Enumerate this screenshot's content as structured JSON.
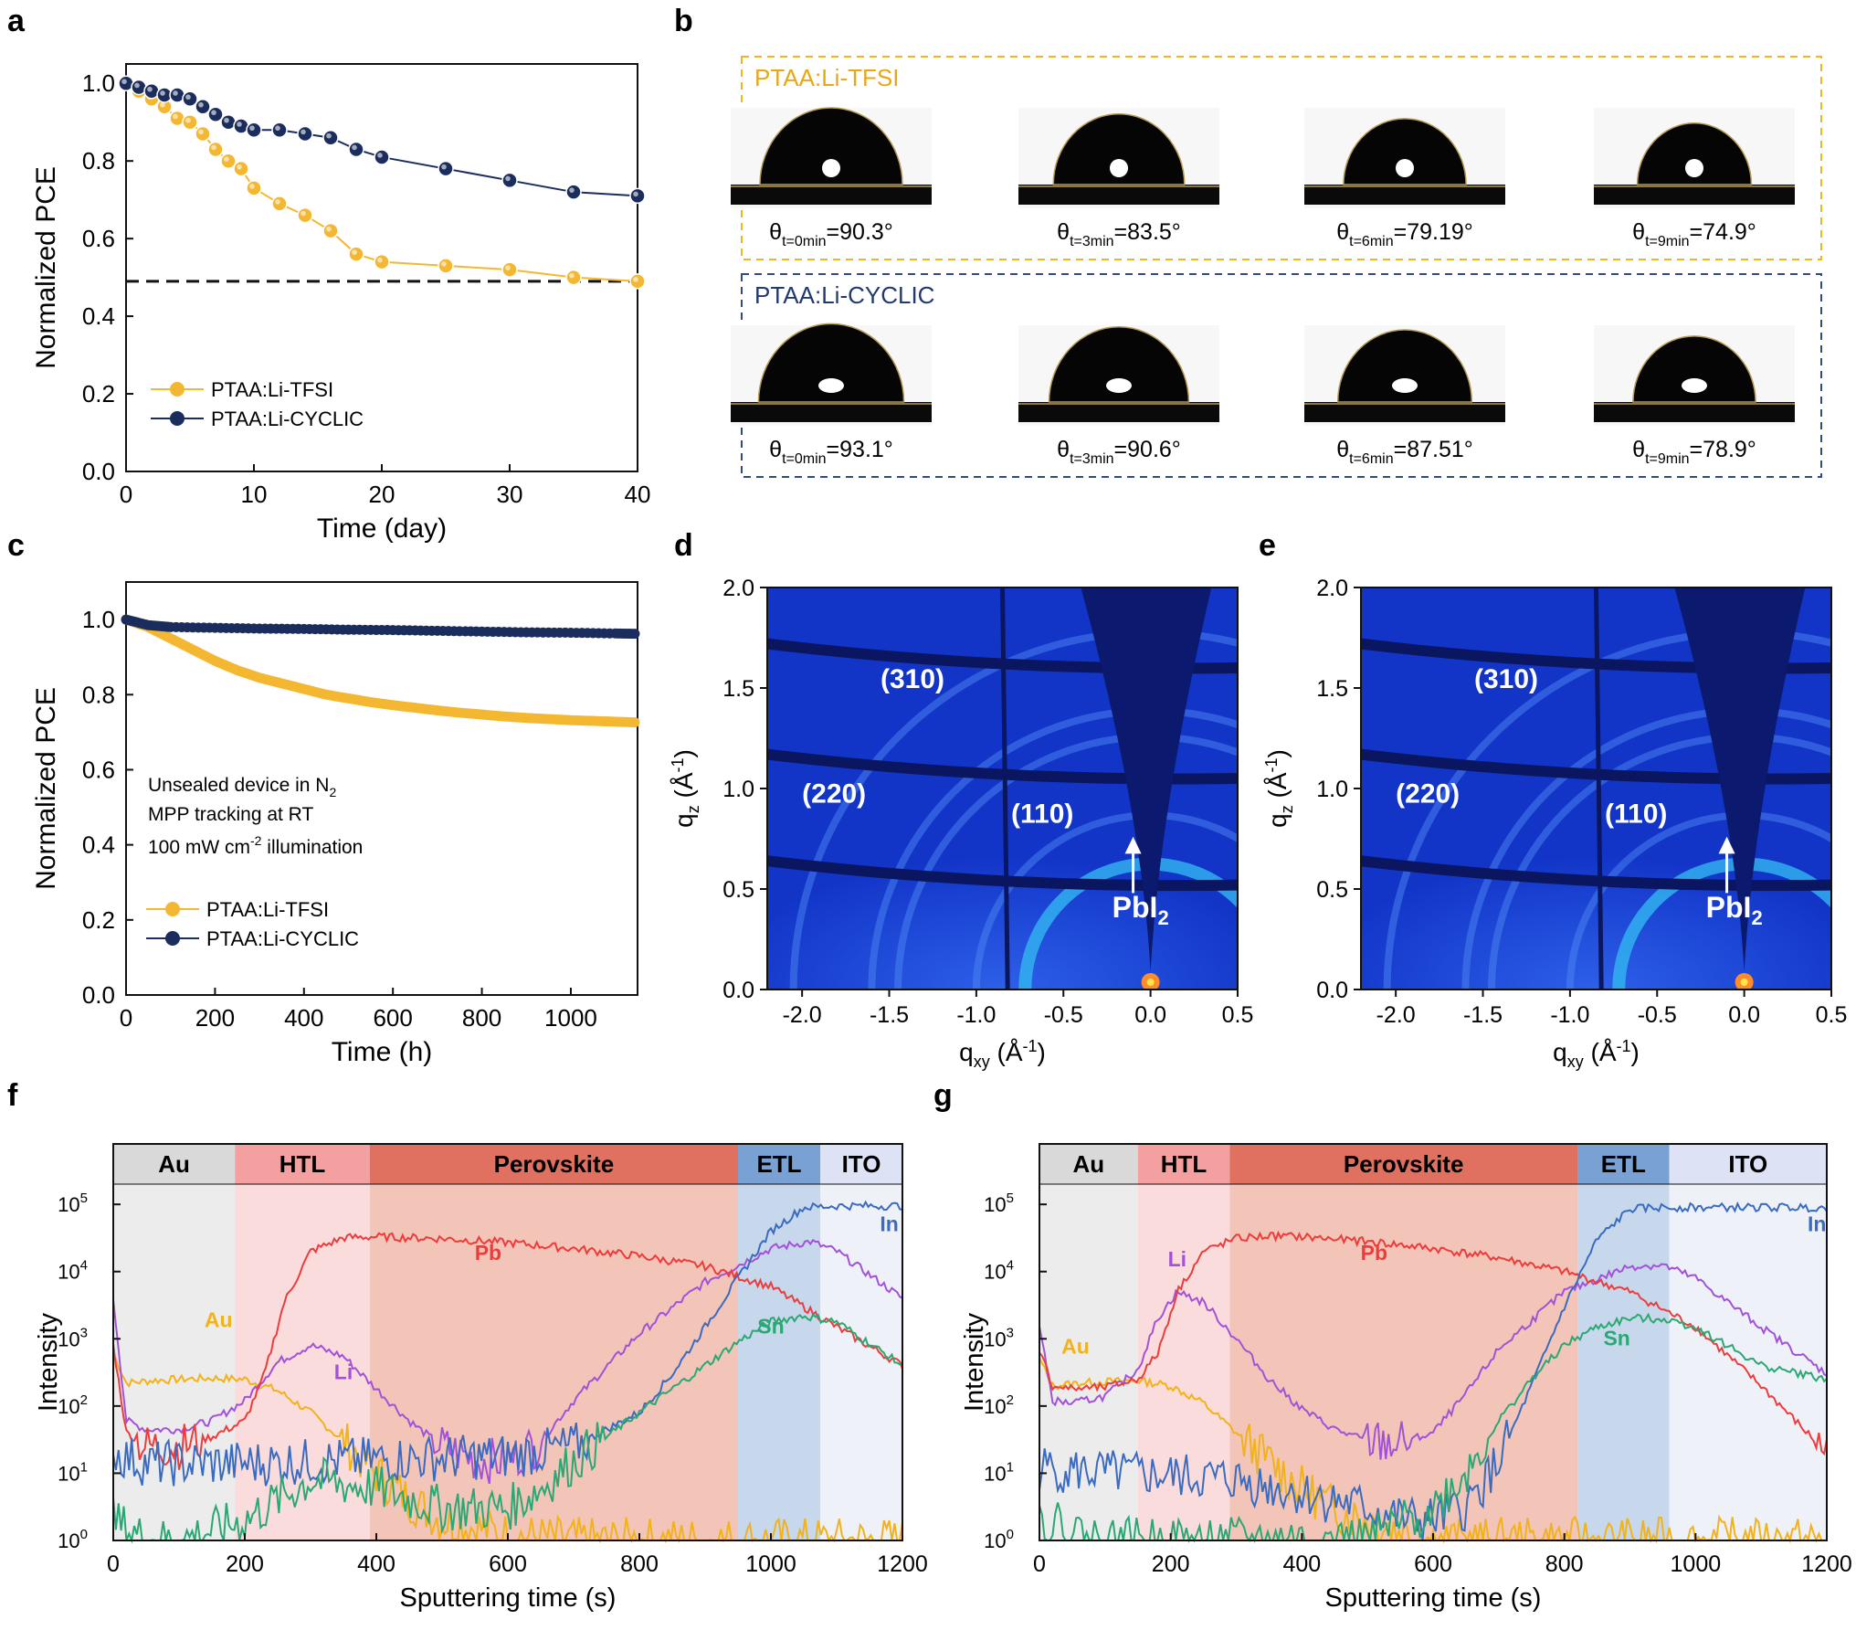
{
  "panel_labels": [
    "a",
    "b",
    "c",
    "d",
    "e",
    "f",
    "g"
  ],
  "colors": {
    "tfsi": "#f4b731",
    "cyclic": "#1b2d5c",
    "dashed": "#111111",
    "gi_bg": "#1235c8",
    "gi_dark": "#0a1660",
    "gi_ring": "#33b6f0",
    "Au": "#f2b21a",
    "Li": "#a252d8",
    "Pb": "#ee3b3b",
    "In": "#3a6bc0",
    "Sn": "#2aa873",
    "band_Au": "#d9d9d9",
    "band_HTL": "#f5a0a0",
    "band_Perovskite": "#e0705f",
    "band_ETL": "#7aa1d4",
    "band_ITO": "#dde3f4"
  },
  "chart_data": [
    {
      "panel": "a",
      "type": "line",
      "xlabel": "Time (day)",
      "ylabel": "Normalized PCE",
      "xlim": [
        0,
        40
      ],
      "ylim": [
        0,
        1.05
      ],
      "xticks": [
        "0",
        "10",
        "20",
        "30",
        "40"
      ],
      "yticks": [
        "0.0",
        "0.2",
        "0.4",
        "0.6",
        "0.8",
        "1.0"
      ],
      "reference_line_y": 0.49,
      "legend": "bottom-left",
      "series": [
        {
          "name": "PTAA:Li-TFSI",
          "x": [
            0,
            1,
            2,
            3,
            4,
            5,
            6,
            7,
            8,
            9,
            10,
            12,
            14,
            16,
            18,
            20,
            25,
            30,
            35,
            40
          ],
          "y": [
            1.0,
            0.98,
            0.96,
            0.94,
            0.91,
            0.9,
            0.87,
            0.83,
            0.8,
            0.78,
            0.73,
            0.69,
            0.66,
            0.62,
            0.56,
            0.54,
            0.53,
            0.52,
            0.5,
            0.49
          ]
        },
        {
          "name": "PTAA:Li-CYCLIC",
          "x": [
            0,
            1,
            2,
            3,
            4,
            5,
            6,
            7,
            8,
            9,
            10,
            12,
            14,
            16,
            18,
            20,
            25,
            30,
            35,
            40
          ],
          "y": [
            1.0,
            0.99,
            0.98,
            0.97,
            0.97,
            0.96,
            0.94,
            0.92,
            0.9,
            0.89,
            0.88,
            0.88,
            0.87,
            0.86,
            0.83,
            0.81,
            0.78,
            0.75,
            0.72,
            0.71
          ]
        }
      ]
    },
    {
      "panel": "c",
      "type": "line",
      "xlabel": "Time (h)",
      "ylabel": "Normalized PCE",
      "xlim": [
        0,
        1150
      ],
      "ylim": [
        0,
        1.1
      ],
      "xticks": [
        "0",
        "200",
        "400",
        "600",
        "800",
        "1000"
      ],
      "yticks": [
        "0.0",
        "0.2",
        "0.4",
        "0.6",
        "0.8",
        "1.0"
      ],
      "annotation": [
        "Unsealed device in N",
        "2",
        "MPP tracking at RT",
        "100 mW cm",
        "-2",
        " illumination"
      ],
      "legend": "bottom-left",
      "series": [
        {
          "name": "PTAA:Li-TFSI",
          "x": [
            0,
            50,
            100,
            150,
            200,
            250,
            300,
            350,
            400,
            450,
            500,
            550,
            600,
            650,
            700,
            750,
            800,
            850,
            900,
            950,
            1000,
            1050,
            1100,
            1150
          ],
          "y": [
            1.0,
            0.98,
            0.95,
            0.92,
            0.89,
            0.865,
            0.845,
            0.83,
            0.815,
            0.8,
            0.79,
            0.78,
            0.772,
            0.765,
            0.758,
            0.752,
            0.747,
            0.742,
            0.738,
            0.735,
            0.732,
            0.73,
            0.728,
            0.726
          ]
        },
        {
          "name": "PTAA:Li-CYCLIC",
          "x": [
            0,
            50,
            100,
            200,
            300,
            400,
            500,
            600,
            700,
            800,
            900,
            1000,
            1100,
            1150
          ],
          "y": [
            1.0,
            0.985,
            0.98,
            0.978,
            0.976,
            0.975,
            0.973,
            0.972,
            0.97,
            0.968,
            0.966,
            0.965,
            0.963,
            0.962
          ]
        }
      ]
    },
    {
      "panel": "d",
      "type": "heatmap",
      "xlabel_main": "q",
      "xlabel_sub": "xy",
      "xlabel_unit": " (Å",
      "xlabel_sup": "-1",
      "xlabel_end": ")",
      "ylabel_main": "q",
      "ylabel_sub": "z",
      "ylabel_unit": " (Å",
      "ylabel_sup": "-1",
      "ylabel_end": ")",
      "xlim": [
        -2.2,
        0.5
      ],
      "ylim": [
        0,
        2.0
      ],
      "xticks": [
        "-2.0",
        "-1.5",
        "-1.0",
        "-0.5",
        "0.0",
        "0.5"
      ],
      "yticks": [
        "0.0",
        "0.5",
        "1.0",
        "1.5",
        "2.0"
      ],
      "rings_q": [
        0.72,
        1.0,
        1.45,
        1.6,
        2.05
      ],
      "ring_labels": [
        "(310)",
        "(220)",
        "(110)"
      ],
      "arrow_label": "PbI",
      "arrow_label_sub": "2"
    },
    {
      "panel": "e",
      "type": "heatmap",
      "xlim": [
        -2.2,
        0.5
      ],
      "ylim": [
        0,
        2.0
      ],
      "xticks": [
        "-2.0",
        "-1.5",
        "-1.0",
        "-0.5",
        "0.0",
        "0.5"
      ],
      "yticks": [
        "0.0",
        "0.5",
        "1.0",
        "1.5",
        "2.0"
      ],
      "rings_q": [
        0.72,
        1.0,
        1.45,
        1.6,
        2.05
      ],
      "ring_labels": [
        "(310)",
        "(220)",
        "(110)"
      ],
      "arrow_label": "PbI",
      "arrow_label_sub": "2"
    },
    {
      "panel": "f",
      "type": "line",
      "xlabel": "Sputtering time (s)",
      "ylabel": "Intensity",
      "yscale": "log",
      "xlim": [
        0,
        1200
      ],
      "ylim": [
        1,
        200000
      ],
      "xticks": [
        "0",
        "200",
        "400",
        "600",
        "800",
        "1000",
        "1200"
      ],
      "yticks": [
        "10",
        "10",
        "10",
        "10",
        "10",
        "10"
      ],
      "ytick_exponents": [
        "0",
        "1",
        "2",
        "3",
        "4",
        "5"
      ],
      "layers": [
        {
          "name": "Au",
          "from": 0,
          "to": 185
        },
        {
          "name": "HTL",
          "from": 185,
          "to": 390
        },
        {
          "name": "Perovskite",
          "from": 390,
          "to": 950
        },
        {
          "name": "ETL",
          "from": 950,
          "to": 1075
        },
        {
          "name": "ITO",
          "from": 1075,
          "to": 1200
        }
      ],
      "series": [
        {
          "name": "Au",
          "x": [
            0,
            20,
            60,
            100,
            150,
            200,
            250,
            300,
            350,
            400,
            450,
            500,
            600,
            700,
            800,
            900,
            1000,
            1100,
            1200
          ],
          "y": [
            600,
            220,
            240,
            250,
            260,
            250,
            170,
            80,
            30,
            10,
            4,
            2,
            1.2,
            1,
            1,
            1,
            1,
            1,
            1
          ]
        },
        {
          "name": "Li",
          "x": [
            0,
            20,
            50,
            100,
            150,
            200,
            250,
            300,
            350,
            400,
            450,
            500,
            550,
            600,
            650,
            700,
            800,
            900,
            1000,
            1060,
            1100,
            1200
          ],
          "y": [
            4000,
            60,
            45,
            45,
            60,
            120,
            450,
            800,
            550,
            180,
            60,
            25,
            16,
            15,
            30,
            120,
            1200,
            7000,
            22000,
            28000,
            20000,
            4000
          ]
        },
        {
          "name": "Pb",
          "x": [
            0,
            20,
            50,
            100,
            150,
            200,
            230,
            260,
            300,
            350,
            400,
            500,
            600,
            700,
            800,
            900,
            1000,
            1100,
            1200
          ],
          "y": [
            800,
            40,
            25,
            25,
            35,
            60,
            300,
            3500,
            20000,
            32000,
            33000,
            31000,
            27000,
            22000,
            17000,
            12000,
            6000,
            1500,
            400
          ]
        },
        {
          "name": "In",
          "x": [
            0,
            50,
            100,
            200,
            300,
            400,
            500,
            600,
            700,
            800,
            850,
            900,
            950,
            1000,
            1050,
            1100,
            1200
          ],
          "y": [
            20,
            14,
            14,
            14,
            15,
            16,
            17,
            18,
            25,
            80,
            300,
            1500,
            8000,
            40000,
            90000,
            95000,
            95000
          ]
        },
        {
          "name": "Sn",
          "x": [
            0,
            50,
            100,
            200,
            250,
            300,
            400,
            500,
            600,
            650,
            700,
            800,
            900,
            950,
            1000,
            1050,
            1100,
            1200
          ],
          "y": [
            2,
            1,
            1,
            2,
            4,
            8,
            6,
            3,
            3,
            6,
            15,
            80,
            400,
            900,
            1800,
            2200,
            1800,
            400
          ]
        }
      ],
      "series_labels": [
        "Au",
        "Li",
        "Pb",
        "Sn",
        "In"
      ]
    },
    {
      "panel": "g",
      "type": "line",
      "xlabel": "Sputtering time (s)",
      "ylabel": "Intensity",
      "yscale": "log",
      "xlim": [
        0,
        1200
      ],
      "ylim": [
        1,
        200000
      ],
      "xticks": [
        "0",
        "200",
        "400",
        "600",
        "800",
        "1000",
        "1200"
      ],
      "yticks": [
        "10",
        "10",
        "10",
        "10",
        "10",
        "10"
      ],
      "ytick_exponents": [
        "0",
        "1",
        "2",
        "3",
        "4",
        "5"
      ],
      "layers": [
        {
          "name": "Au",
          "from": 0,
          "to": 150
        },
        {
          "name": "HTL",
          "from": 150,
          "to": 290
        },
        {
          "name": "Perovskite",
          "from": 290,
          "to": 820
        },
        {
          "name": "ETL",
          "from": 820,
          "to": 960
        },
        {
          "name": "ITO",
          "from": 960,
          "to": 1200
        }
      ],
      "series": [
        {
          "name": "Au",
          "x": [
            0,
            20,
            60,
            100,
            150,
            200,
            250,
            300,
            350,
            400,
            450,
            500,
            600,
            700,
            800,
            1000,
            1200
          ],
          "y": [
            500,
            200,
            220,
            230,
            240,
            200,
            110,
            40,
            15,
            6,
            3,
            2,
            1,
            1,
            1,
            1,
            1
          ]
        },
        {
          "name": "Li",
          "x": [
            0,
            20,
            50,
            100,
            150,
            180,
            210,
            250,
            300,
            350,
            400,
            450,
            500,
            550,
            600,
            650,
            700,
            800,
            900,
            950,
            1000,
            1100,
            1200
          ],
          "y": [
            1500,
            120,
            110,
            140,
            350,
            2000,
            5000,
            3500,
            1000,
            250,
            90,
            45,
            30,
            28,
            40,
            150,
            700,
            5000,
            12000,
            12500,
            8000,
            1500,
            300
          ]
        },
        {
          "name": "Pb",
          "x": [
            0,
            20,
            50,
            100,
            150,
            180,
            210,
            250,
            300,
            350,
            400,
            500,
            600,
            700,
            800,
            900,
            1000,
            1100,
            1200
          ],
          "y": [
            700,
            200,
            180,
            190,
            250,
            600,
            5000,
            20000,
            31000,
            34000,
            33000,
            28000,
            22000,
            16000,
            10000,
            5000,
            1500,
            200,
            20
          ]
        },
        {
          "name": "In",
          "x": [
            0,
            100,
            200,
            300,
            400,
            500,
            560,
            600,
            650,
            700,
            750,
            800,
            850,
            900,
            950,
            1000,
            1200
          ],
          "y": [
            12,
            10,
            9,
            8,
            5,
            3,
            2,
            2,
            3,
            15,
            200,
            3000,
            30000,
            85000,
            90000,
            90000,
            90000
          ]
        },
        {
          "name": "Sn",
          "x": [
            0,
            100,
            200,
            300,
            400,
            500,
            600,
            650,
            700,
            750,
            800,
            850,
            900,
            950,
            1000,
            1100,
            1200
          ],
          "y": [
            2,
            1,
            1,
            1,
            1,
            1,
            3,
            10,
            60,
            250,
            800,
            1500,
            2000,
            2000,
            1500,
            400,
            250
          ]
        }
      ],
      "series_labels": [
        "Au",
        "Li",
        "Pb",
        "Sn",
        "In"
      ]
    }
  ],
  "panel_b": {
    "groups": [
      {
        "title": "PTAA:Li-TFSI",
        "items": [
          {
            "sub": "t=0min",
            "value": "=90.3°"
          },
          {
            "sub": "t=3min",
            "value": "=83.5°"
          },
          {
            "sub": "t=6min",
            "value": "=79.19°"
          },
          {
            "sub": "t=9min",
            "value": "=74.9°"
          }
        ]
      },
      {
        "title": "PTAA:Li-CYCLIC",
        "items": [
          {
            "sub": "t=0min",
            "value": "=93.1°"
          },
          {
            "sub": "t=3min",
            "value": "=90.6°"
          },
          {
            "sub": "t=6min",
            "value": "=87.51°"
          },
          {
            "sub": "t=9min",
            "value": "=78.9°"
          }
        ]
      }
    ],
    "theta_symbol": "θ"
  }
}
